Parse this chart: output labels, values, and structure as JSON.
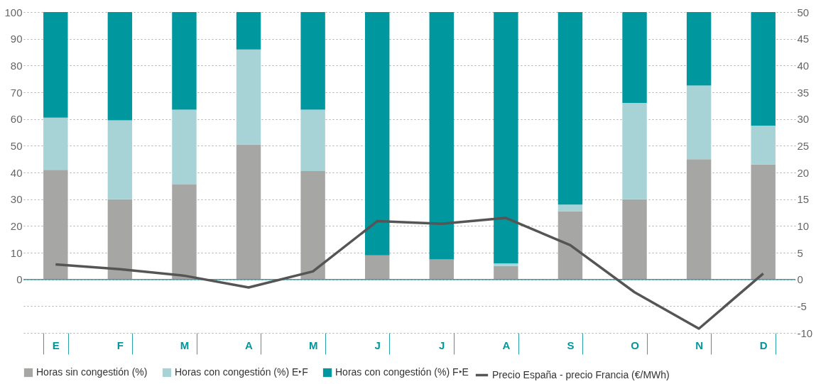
{
  "chart_data": {
    "type": "bar",
    "stacked": true,
    "categories": [
      "E",
      "F",
      "M",
      "A",
      "M",
      "J",
      "J",
      "A",
      "S",
      "O",
      "N",
      "D"
    ],
    "series": [
      {
        "name": "Horas sin congestión (%)",
        "color": "#a6a6a5",
        "values": [
          41,
          30,
          35.5,
          50.5,
          40.5,
          9,
          7.5,
          5,
          25.5,
          30,
          45,
          43
        ]
      },
      {
        "name": "Horas con congestión (%) E‣F",
        "color": "#a7d3d6",
        "values": [
          19.5,
          29.5,
          28,
          35.5,
          23,
          0,
          0,
          1,
          2.5,
          36,
          27.5,
          14.5
        ]
      },
      {
        "name": "Horas con congestión (%) F‣E",
        "color": "#00979e",
        "values": [
          39.5,
          40.5,
          36.5,
          14,
          36.5,
          91,
          92.5,
          94,
          72,
          34,
          27.5,
          42.5
        ]
      },
      {
        "name": "Precio España - precio Francia (€/MWh)",
        "color": "#555555",
        "type": "line",
        "axis": "y2",
        "values": [
          2.8,
          1.9,
          0.7,
          -1.5,
          1.5,
          10.9,
          10.4,
          11.5,
          6.4,
          -2.4,
          -9.2,
          1.1
        ]
      }
    ],
    "ylim": [
      -20,
      100
    ],
    "yticks": [
      {
        "value": -20,
        "label": null
      },
      {
        "value": -10,
        "label": null
      },
      0,
      10,
      20,
      30,
      40,
      50,
      60,
      70,
      80,
      90,
      100
    ],
    "y2lim": [
      -10,
      50
    ],
    "y2ticks": [
      -10,
      -5,
      0,
      5,
      10,
      15,
      20,
      25,
      30,
      35,
      40,
      45,
      50
    ],
    "ref_lines": [
      {
        "axis": "y",
        "value": 0,
        "color": "#29a3aa"
      }
    ],
    "grid": "y",
    "legend": "bottom",
    "line_style": "solid",
    "marker": "none"
  }
}
